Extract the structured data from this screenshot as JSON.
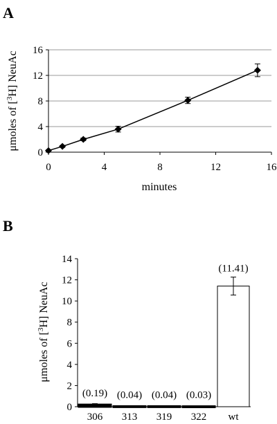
{
  "chart_data": [
    {
      "panel": "A",
      "type": "line",
      "xlabel": "minutes",
      "ylabel_prefix": "μmoles of [",
      "ylabel_sup": "3",
      "ylabel_suffix": "H] NeuAc",
      "xlim": [
        0,
        16
      ],
      "ylim": [
        0,
        16
      ],
      "xticks": [
        "0",
        "4",
        "8",
        "12",
        "16"
      ],
      "yticks": [
        "0",
        "4",
        "8",
        "12",
        "16"
      ],
      "grid": "horizontal",
      "x": [
        0,
        1,
        2.5,
        5,
        10,
        15
      ],
      "y": [
        0.25,
        0.9,
        2.0,
        3.6,
        8.1,
        12.8
      ],
      "err": [
        0.1,
        0.15,
        0.2,
        0.45,
        0.5,
        1.0
      ]
    },
    {
      "panel": "B",
      "type": "bar",
      "ylabel_prefix": "μmoles of [",
      "ylabel_sup": "3",
      "ylabel_suffix": "H] NeuAc",
      "ylim": [
        0,
        14
      ],
      "yticks": [
        "0",
        "2",
        "4",
        "6",
        "8",
        "10",
        "12",
        "14"
      ],
      "categories": [
        "306",
        "313",
        "319",
        "322",
        "wt"
      ],
      "values": [
        0.19,
        0.04,
        0.04,
        0.03,
        11.41
      ],
      "err": [
        0.1,
        0.05,
        0.02,
        0.02,
        0.85
      ],
      "labels": [
        "(0.19)",
        "(0.04)",
        "(0.04)",
        "(0.03)",
        "(11.41)"
      ]
    }
  ]
}
